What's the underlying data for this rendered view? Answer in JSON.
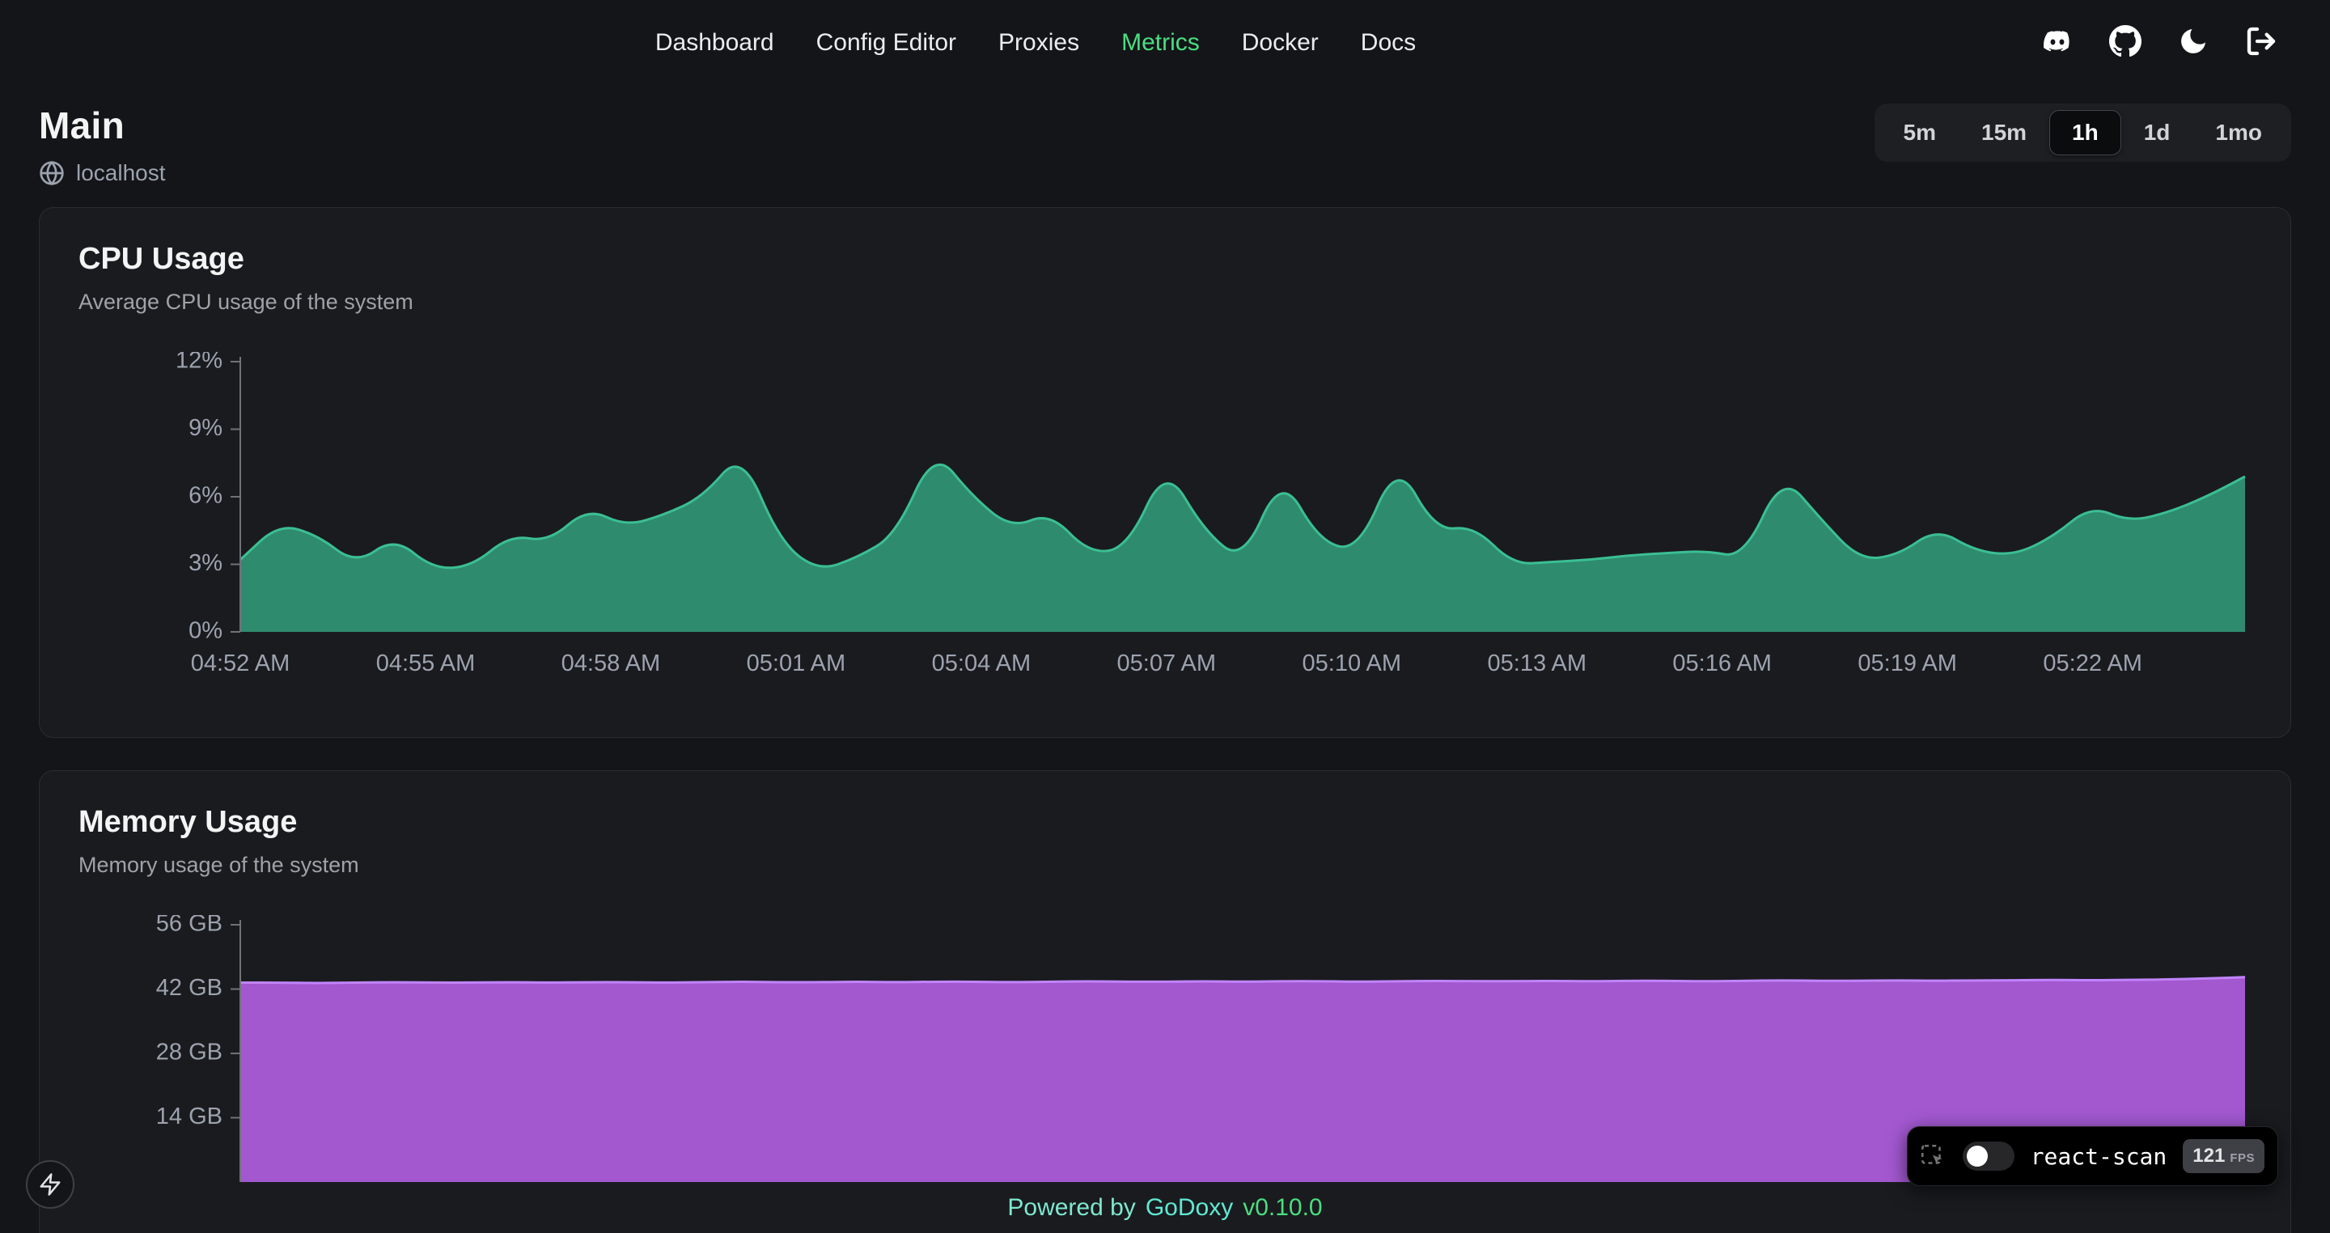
{
  "nav": {
    "items": [
      {
        "label": "Dashboard",
        "active": false
      },
      {
        "label": "Config Editor",
        "active": false
      },
      {
        "label": "Proxies",
        "active": false
      },
      {
        "label": "Metrics",
        "active": true
      },
      {
        "label": "Docker",
        "active": false
      },
      {
        "label": "Docs",
        "active": false
      }
    ]
  },
  "header_icons": [
    "discord-icon",
    "github-icon",
    "dark-mode-icon",
    "logout-icon"
  ],
  "page": {
    "title": "Main",
    "host": "localhost"
  },
  "time_range": {
    "options": [
      "5m",
      "15m",
      "1h",
      "1d",
      "1mo"
    ],
    "selected": "1h"
  },
  "chart_data": [
    {
      "type": "area",
      "title": "CPU Usage",
      "subtitle": "Average CPU usage of the system",
      "xlabel": "",
      "ylabel": "",
      "ylim": [
        0,
        12
      ],
      "grid": false,
      "legend": "none",
      "yticks": [
        {
          "value": 0,
          "label": "0%"
        },
        {
          "value": 3,
          "label": "3%"
        },
        {
          "value": 6,
          "label": "6%"
        },
        {
          "value": 9,
          "label": "9%"
        },
        {
          "value": 12,
          "label": "12%"
        }
      ],
      "xlabels": [
        "04:52 AM",
        "04:55 AM",
        "04:58 AM",
        "05:01 AM",
        "05:04 AM",
        "05:07 AM",
        "05:10 AM",
        "05:13 AM",
        "05:16 AM",
        "05:19 AM",
        "05:22 AM"
      ],
      "values": [
        3.2,
        4.8,
        4.3,
        3.0,
        4.2,
        2.8,
        2.9,
        4.3,
        4.0,
        5.5,
        4.7,
        5.2,
        6.0,
        8.0,
        4.0,
        2.7,
        3.3,
        4.3,
        8.1,
        6.0,
        4.6,
        5.3,
        3.5,
        3.7,
        7.4,
        4.5,
        3.1,
        7.0,
        4.0,
        3.6,
        7.6,
        4.5,
        4.7,
        3.0,
        3.1,
        3.2,
        3.4,
        3.5,
        3.6,
        3.3,
        7.0,
        5.0,
        3.2,
        3.4,
        4.6,
        3.6,
        3.4,
        4.2,
        5.6,
        4.9,
        5.3,
        6.0,
        6.9
      ],
      "stroke": "#3bbf92",
      "fill": "#2e8b6e"
    },
    {
      "type": "area",
      "title": "Memory Usage",
      "subtitle": "Memory usage of the system",
      "xlabel": "",
      "ylabel": "",
      "ylim": [
        0,
        56
      ],
      "grid": false,
      "legend": "none",
      "unit": "GB",
      "yticks": [
        {
          "value": 14,
          "label": "14 GB"
        },
        {
          "value": 28,
          "label": "28 GB"
        },
        {
          "value": 42,
          "label": "42 GB"
        },
        {
          "value": 56,
          "label": "56 GB"
        }
      ],
      "xlabels": [],
      "values": [
        43.4,
        43.4,
        43.3,
        43.4,
        43.5,
        43.4,
        43.4,
        43.5,
        43.4,
        43.5,
        43.5,
        43.4,
        43.5,
        43.6,
        43.5,
        43.5,
        43.6,
        43.5,
        43.6,
        43.6,
        43.5,
        43.6,
        43.7,
        43.6,
        43.6,
        43.7,
        43.6,
        43.7,
        43.7,
        43.6,
        43.7,
        43.8,
        43.7,
        43.7,
        43.8,
        43.7,
        43.8,
        43.8,
        43.7,
        43.8,
        43.9,
        43.8,
        43.8,
        43.9,
        43.8,
        43.9,
        43.9,
        44.0,
        43.9,
        44.0,
        44.1,
        44.3,
        44.6
      ],
      "stroke": "#c084fc",
      "fill": "#a358d0"
    }
  ],
  "footer": {
    "powered_by": "Powered by",
    "brand": "GoDoxy",
    "version": "v0.10.0",
    "powered_color": "#7ee8cf",
    "brand_color": "#5eead4",
    "version_color": "#4ade80"
  },
  "react_scan": {
    "label": "react-scan",
    "fps": "121",
    "fps_unit": "FPS",
    "toggle_on": false
  },
  "colors": {
    "accent": "#4ade80",
    "background": "#141519",
    "card": "#1a1b1f",
    "border": "#2b2c31",
    "text_muted": "#9ca3af",
    "axis": "#71717a"
  }
}
